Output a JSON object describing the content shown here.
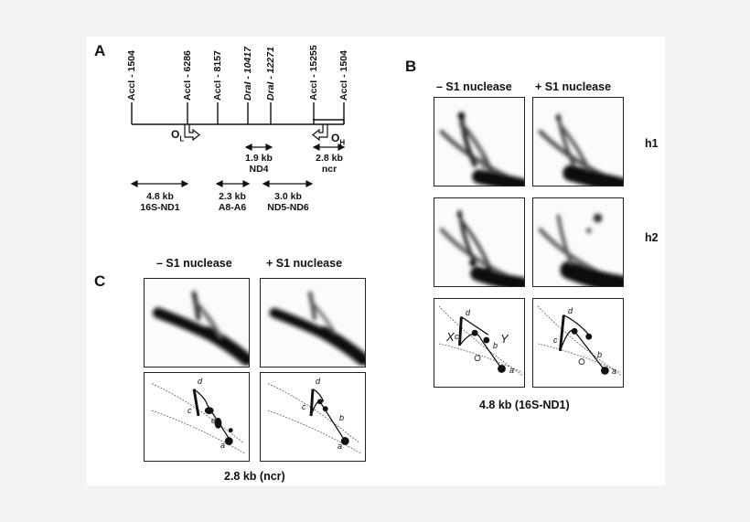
{
  "figure": {
    "panel_labels": {
      "a": "A",
      "b": "B",
      "c": "C"
    },
    "map": {
      "sites": [
        {
          "label": "AccI - 1504"
        },
        {
          "label": "AccI - 6286"
        },
        {
          "label": "AccI - 8157"
        },
        {
          "label": "DraI - 10417"
        },
        {
          "label": "DraI - 12271"
        },
        {
          "label": "AccI - 15255"
        },
        {
          "label": "AccI - 1504"
        }
      ],
      "origin_l": {
        "letter": "O",
        "sub": "L"
      },
      "origin_h": {
        "letter": "O",
        "sub": "H"
      },
      "fragments": [
        {
          "size": "1.9 kb",
          "name": "ND4"
        },
        {
          "size": "2.8 kb",
          "name": "ncr"
        },
        {
          "size": "4.8 kb",
          "name": "16S-ND1"
        },
        {
          "size": "2.3 kb",
          "name": "A8-A6"
        },
        {
          "size": "3.0 kb",
          "name": "ND5-ND6"
        }
      ]
    },
    "panel_b": {
      "conditions": [
        "– S1 nuclease",
        "+ S1 nuclease"
      ],
      "rows": [
        "h1",
        "h2"
      ],
      "diagram_left": {
        "d": "d",
        "c": "c",
        "b": "b",
        "a": "a",
        "x": "X",
        "y": "Y"
      },
      "diagram_right": {
        "d": "d",
        "c": "c",
        "b": "b",
        "a": "a"
      },
      "caption": "4.8 kb (16S-ND1)"
    },
    "panel_c": {
      "conditions": [
        "– S1 nuclease",
        "+ S1 nuclease"
      ],
      "diagram_left": {
        "d": "d",
        "c": "c",
        "e": "e",
        "a": "a"
      },
      "diagram_right": {
        "d": "d",
        "c": "c",
        "b": "b",
        "a": "a"
      },
      "caption": "2.8 kb (ncr)"
    }
  }
}
